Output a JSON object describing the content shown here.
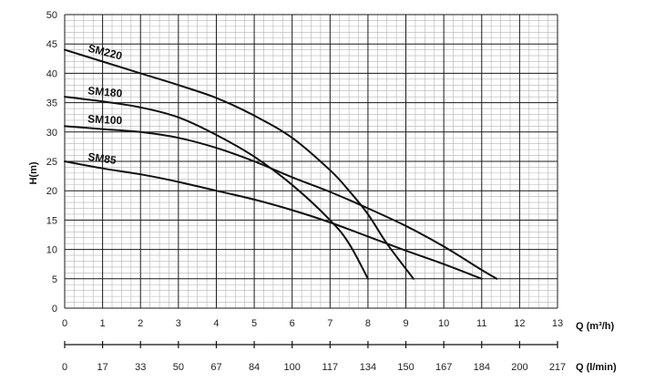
{
  "chart_data": {
    "type": "line",
    "ylabel": "H(m)",
    "xlabel": "Q (m³/h)",
    "x2label": "Q (l/min)",
    "xlim": [
      0,
      13
    ],
    "ylim": [
      0,
      50
    ],
    "x_ticks": [
      0,
      1,
      2,
      3,
      4,
      5,
      6,
      7,
      8,
      9,
      10,
      11,
      12,
      13
    ],
    "y_ticks": [
      0,
      5,
      10,
      15,
      20,
      25,
      30,
      35,
      40,
      45,
      50
    ],
    "x2_tick_labels": [
      "0",
      "17",
      "33",
      "50",
      "67",
      "84",
      "100",
      "117",
      "134",
      "150",
      "167",
      "184",
      "200",
      "217"
    ],
    "grid": true,
    "minor_grid": true,
    "series": [
      {
        "name": "SM220",
        "x": [
          0,
          1,
          2,
          3,
          4,
          5,
          6,
          7,
          7.5,
          8,
          8.5,
          9.2
        ],
        "y": [
          44,
          42,
          40,
          38,
          35.8,
          32.8,
          29,
          23.5,
          20,
          16,
          11,
          5
        ]
      },
      {
        "name": "SM180",
        "x": [
          0,
          1,
          2,
          3,
          4,
          5,
          6,
          7,
          7.5,
          8
        ],
        "y": [
          36,
          35.2,
          34.2,
          32.5,
          29.5,
          25.8,
          21,
          15,
          11,
          5
        ]
      },
      {
        "name": "SM100",
        "x": [
          0,
          1,
          2,
          3,
          4,
          5,
          6,
          7,
          8,
          9,
          10,
          11,
          11.4
        ],
        "y": [
          31,
          30.5,
          30,
          29,
          27.3,
          25,
          22.3,
          19.8,
          17,
          14,
          10.5,
          6.5,
          5
        ]
      },
      {
        "name": "SM85",
        "x": [
          0,
          1,
          2,
          3,
          4,
          5,
          6,
          7,
          8,
          9,
          10,
          11
        ],
        "y": [
          25,
          23.8,
          22.8,
          21.5,
          20,
          18.5,
          16.7,
          14.6,
          12.2,
          9.8,
          7.5,
          5
        ]
      }
    ]
  }
}
